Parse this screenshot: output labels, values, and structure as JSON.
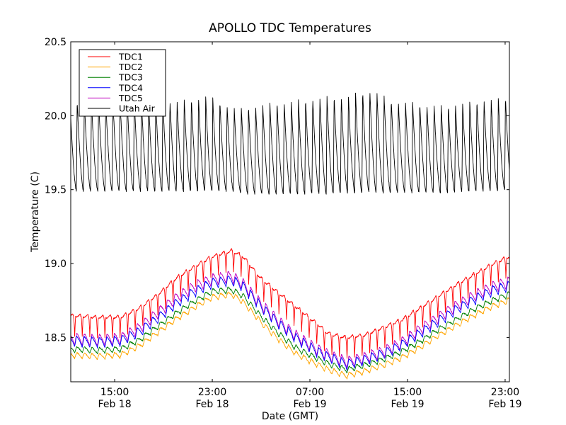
{
  "chart_data": {
    "type": "line",
    "title": "APOLLO TDC Temperatures",
    "xlabel": "Date (GMT)",
    "ylabel": "Temperature (C)",
    "x_unit": "hours since Feb 18 00:00 GMT",
    "xlim": [
      11.4,
      47.35
    ],
    "ylim": [
      18.2,
      20.5
    ],
    "grid": false,
    "legend_position": "top-left",
    "x_ticks": [
      {
        "value": 15,
        "line1": "15:00",
        "line2": "Feb 18"
      },
      {
        "value": 23,
        "line1": "23:00",
        "line2": "Feb 18"
      },
      {
        "value": 31,
        "line1": "07:00",
        "line2": "Feb 19"
      },
      {
        "value": 39,
        "line1": "15:00",
        "line2": "Feb 19"
      },
      {
        "value": 47,
        "line1": "23:00",
        "line2": "Feb 19"
      }
    ],
    "y_ticks": [
      {
        "value": 18.5,
        "label": "18.5"
      },
      {
        "value": 19.0,
        "label": "19.0"
      },
      {
        "value": 19.5,
        "label": "19.5"
      },
      {
        "value": 20.0,
        "label": "20.0"
      },
      {
        "value": 20.5,
        "label": "20.5"
      }
    ],
    "series": [
      {
        "name": "TDC1",
        "color": "#ff0000",
        "pattern": "plateau-with-dips",
        "cycle_hours": 0.62,
        "dip_depth": 0.14,
        "envelope": [
          [
            11.4,
            18.65
          ],
          [
            13.5,
            18.64
          ],
          [
            15.5,
            18.64
          ],
          [
            17,
            18.7
          ],
          [
            18.5,
            18.79
          ],
          [
            20,
            18.9
          ],
          [
            21.5,
            18.98
          ],
          [
            23,
            19.05
          ],
          [
            24.6,
            19.09
          ],
          [
            25.5,
            19.05
          ],
          [
            27,
            18.9
          ],
          [
            28.5,
            18.8
          ],
          [
            30,
            18.7
          ],
          [
            31.5,
            18.6
          ],
          [
            32.5,
            18.53
          ],
          [
            34,
            18.5
          ],
          [
            35.5,
            18.52
          ],
          [
            37,
            18.57
          ],
          [
            38.5,
            18.62
          ],
          [
            40,
            18.7
          ],
          [
            41.5,
            18.78
          ],
          [
            43,
            18.86
          ],
          [
            44.5,
            18.93
          ],
          [
            46,
            19.0
          ],
          [
            47.35,
            19.05
          ]
        ]
      },
      {
        "name": "TDC2",
        "color": "#ffa500",
        "pattern": "sawtooth",
        "cycle_hours": 0.62,
        "dip_depth": 0.04,
        "envelope": [
          [
            11.4,
            18.4
          ],
          [
            13.5,
            18.39
          ],
          [
            15.5,
            18.4
          ],
          [
            17,
            18.46
          ],
          [
            18.5,
            18.55
          ],
          [
            20,
            18.64
          ],
          [
            21.5,
            18.72
          ],
          [
            23,
            18.79
          ],
          [
            24.6,
            18.81
          ],
          [
            25.5,
            18.76
          ],
          [
            27,
            18.62
          ],
          [
            28.5,
            18.5
          ],
          [
            30,
            18.4
          ],
          [
            31.5,
            18.34
          ],
          [
            32.5,
            18.3
          ],
          [
            34,
            18.26
          ],
          [
            35.5,
            18.29
          ],
          [
            37,
            18.33
          ],
          [
            38.5,
            18.38
          ],
          [
            40,
            18.45
          ],
          [
            41.5,
            18.53
          ],
          [
            43,
            18.6
          ],
          [
            44.5,
            18.67
          ],
          [
            46,
            18.73
          ],
          [
            47.35,
            18.77
          ]
        ]
      },
      {
        "name": "TDC3",
        "color": "#008000",
        "pattern": "sawtooth",
        "cycle_hours": 0.62,
        "dip_depth": 0.04,
        "envelope": [
          [
            11.4,
            18.44
          ],
          [
            13.5,
            18.43
          ],
          [
            15.5,
            18.44
          ],
          [
            17,
            18.5
          ],
          [
            18.5,
            18.59
          ],
          [
            20,
            18.68
          ],
          [
            21.5,
            18.76
          ],
          [
            23,
            18.83
          ],
          [
            24.6,
            18.84
          ],
          [
            25.5,
            18.8
          ],
          [
            27,
            18.66
          ],
          [
            28.5,
            18.54
          ],
          [
            30,
            18.44
          ],
          [
            31.5,
            18.38
          ],
          [
            32.5,
            18.34
          ],
          [
            34,
            18.3
          ],
          [
            35.5,
            18.33
          ],
          [
            37,
            18.37
          ],
          [
            38.5,
            18.42
          ],
          [
            40,
            18.49
          ],
          [
            41.5,
            18.57
          ],
          [
            43,
            18.64
          ],
          [
            44.5,
            18.71
          ],
          [
            46,
            18.77
          ],
          [
            47.35,
            18.81
          ]
        ]
      },
      {
        "name": "TDC4",
        "color": "#0000ff",
        "pattern": "sawtooth",
        "cycle_hours": 0.62,
        "dip_depth": 0.07,
        "envelope": [
          [
            11.4,
            18.51
          ],
          [
            13.5,
            18.5
          ],
          [
            15.5,
            18.51
          ],
          [
            17,
            18.57
          ],
          [
            18.5,
            18.66
          ],
          [
            20,
            18.76
          ],
          [
            21.5,
            18.84
          ],
          [
            23,
            18.9
          ],
          [
            24.6,
            18.92
          ],
          [
            25.5,
            18.88
          ],
          [
            27,
            18.74
          ],
          [
            28.5,
            18.62
          ],
          [
            30,
            18.52
          ],
          [
            31.5,
            18.44
          ],
          [
            32.5,
            18.4
          ],
          [
            34,
            18.35
          ],
          [
            35.5,
            18.38
          ],
          [
            37,
            18.42
          ],
          [
            38.5,
            18.48
          ],
          [
            40,
            18.56
          ],
          [
            41.5,
            18.64
          ],
          [
            43,
            18.72
          ],
          [
            44.5,
            18.79
          ],
          [
            46,
            18.85
          ],
          [
            47.35,
            18.88
          ]
        ]
      },
      {
        "name": "TDC5",
        "color": "#bf00bf",
        "pattern": "sawtooth",
        "cycle_hours": 0.62,
        "dip_depth": 0.08,
        "envelope": [
          [
            11.4,
            18.53
          ],
          [
            13.5,
            18.52
          ],
          [
            15.5,
            18.53
          ],
          [
            17,
            18.6
          ],
          [
            18.5,
            18.7
          ],
          [
            20,
            18.8
          ],
          [
            21.5,
            18.88
          ],
          [
            23,
            18.93
          ],
          [
            24.6,
            18.95
          ],
          [
            25.5,
            18.9
          ],
          [
            27,
            18.76
          ],
          [
            28.5,
            18.64
          ],
          [
            30,
            18.54
          ],
          [
            31.5,
            18.46
          ],
          [
            32.5,
            18.42
          ],
          [
            34,
            18.37
          ],
          [
            35.5,
            18.4
          ],
          [
            37,
            18.44
          ],
          [
            38.5,
            18.5
          ],
          [
            40,
            18.59
          ],
          [
            41.5,
            18.67
          ],
          [
            43,
            18.75
          ],
          [
            44.5,
            18.82
          ],
          [
            46,
            18.88
          ],
          [
            47.35,
            18.91
          ]
        ]
      },
      {
        "name": "Utah Air",
        "color": "#000000",
        "pattern": "sawtooth-fast-rise",
        "cycle_hours": 0.585,
        "trough": [
          [
            11.4,
            19.49
          ],
          [
            20,
            19.49
          ],
          [
            24.5,
            19.49
          ],
          [
            26,
            19.47
          ],
          [
            30,
            19.47
          ],
          [
            36,
            19.48
          ],
          [
            42,
            19.48
          ],
          [
            47.35,
            19.5
          ]
        ],
        "peak": [
          [
            11.4,
            20.1
          ],
          [
            15,
            20.12
          ],
          [
            20,
            20.1
          ],
          [
            22.5,
            20.14
          ],
          [
            25,
            20.05
          ],
          [
            28,
            20.09
          ],
          [
            31,
            20.12
          ],
          [
            34,
            20.14
          ],
          [
            36,
            20.18
          ],
          [
            38,
            20.1
          ],
          [
            42,
            20.07
          ],
          [
            45,
            20.11
          ],
          [
            47.35,
            20.13
          ]
        ]
      }
    ]
  }
}
